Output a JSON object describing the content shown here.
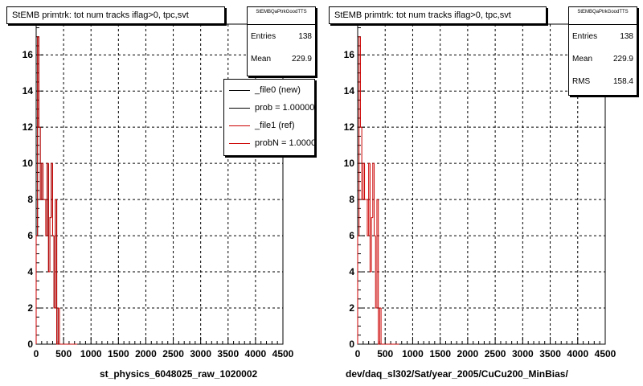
{
  "chart_data": [
    {
      "type": "histogram",
      "title": "StEMB primtrk: tot num tracks iflag>0, tpc,svt",
      "xlim": [
        0,
        4500
      ],
      "ylim": [
        0,
        17.7
      ],
      "xticks": [
        0,
        500,
        1000,
        1500,
        2000,
        2500,
        3000,
        3500,
        4000,
        4500
      ],
      "yticks": [
        0,
        2,
        4,
        6,
        8,
        10,
        12,
        14,
        16
      ],
      "grid": true,
      "stats": {
        "title": "StEMBQaPtrkGoodTTS",
        "entries_label": "Entries",
        "entries": "138",
        "mean_label": "Mean",
        "mean": "229.9"
      },
      "legend": [
        {
          "label": "_file0 (new)",
          "color": "#000000"
        },
        {
          "label": "prob = 1.000000",
          "color": "#000000"
        },
        {
          "label": "_file1 (ref)",
          "color": "#cc0000"
        },
        {
          "label": "probN = 1.000000",
          "color": "#cc0000"
        }
      ],
      "footer": "st_physics_6048025_raw_1020002",
      "bin_width": 25,
      "series": [
        {
          "name": "_file0 (new)",
          "color": "#000000",
          "values": [
            6,
            17,
            12,
            8,
            10,
            8,
            8,
            6,
            10,
            4,
            7,
            10,
            6,
            2,
            8,
            0,
            2,
            0,
            0,
            0,
            0,
            0,
            0,
            0,
            0,
            0,
            0,
            0,
            0,
            0
          ]
        },
        {
          "name": "_file1 (ref)",
          "color": "#cc0000",
          "values": [
            6,
            17,
            12,
            8,
            10,
            8,
            8,
            6,
            10,
            4,
            7,
            10,
            6,
            2,
            8,
            0,
            2,
            0,
            0,
            0,
            0,
            0,
            0,
            0,
            0,
            0,
            0,
            0,
            0,
            0
          ]
        }
      ]
    },
    {
      "type": "histogram",
      "title": "StEMB primtrk: tot num tracks iflag>0, tpc,svt",
      "xlim": [
        0,
        4500
      ],
      "ylim": [
        0,
        17.7
      ],
      "xticks": [
        0,
        500,
        1000,
        1500,
        2000,
        2500,
        3000,
        3500,
        4000,
        4500
      ],
      "yticks": [
        0,
        2,
        4,
        6,
        8,
        10,
        12,
        14,
        16
      ],
      "grid": true,
      "stats": {
        "title": "StEMBQaPtrkGoodTTS",
        "entries_label": "Entries",
        "entries": "138",
        "mean_label": "Mean",
        "mean": "229.9",
        "rms_label": "RMS",
        "rms": "158.4"
      },
      "footer": "dev/daq_sl302/Sat/year_2005/CuCu200_MinBias/",
      "bin_width": 25,
      "series": [
        {
          "name": "",
          "color": "#cc0000",
          "values": [
            6,
            17,
            12,
            8,
            10,
            8,
            8,
            6,
            10,
            4,
            7,
            10,
            6,
            2,
            8,
            0,
            2,
            0,
            0,
            0,
            0,
            0,
            0,
            0,
            0,
            0,
            0,
            0,
            0,
            0
          ]
        }
      ]
    }
  ]
}
